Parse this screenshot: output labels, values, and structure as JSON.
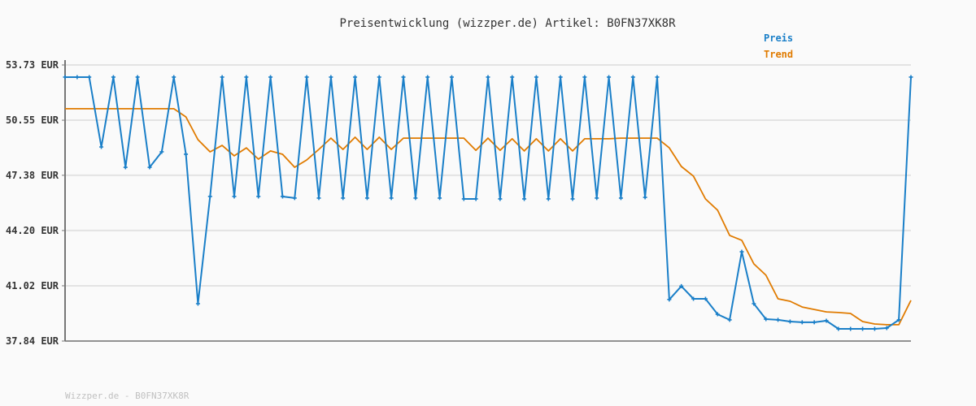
{
  "chart_data": {
    "type": "line",
    "title": "Preisentwicklung (wizzper.de) Artikel: B0FN37XK8R",
    "xlabel": "",
    "ylabel": "",
    "ylim": [
      37.84,
      53.73
    ],
    "yticks": [
      "37.84 EUR",
      "41.02 EUR",
      "44.20 EUR",
      "47.38 EUR",
      "50.55 EUR",
      "53.73 EUR"
    ],
    "ytick_values": [
      37.84,
      41.02,
      44.2,
      47.38,
      50.55,
      53.73
    ],
    "grid": true,
    "legend_position": "top-right",
    "series": [
      {
        "name": "Preis",
        "color": "#1a7fc8",
        "values": [
          53.03,
          53.03,
          53.03,
          49.01,
          53.03,
          47.84,
          53.03,
          47.84,
          48.73,
          53.03,
          48.59,
          39.99,
          46.16,
          53.03,
          46.16,
          53.03,
          46.16,
          53.03,
          46.16,
          46.07,
          53.03,
          46.07,
          53.03,
          46.07,
          53.03,
          46.07,
          53.03,
          46.07,
          53.03,
          46.07,
          53.03,
          46.07,
          53.03,
          46.02,
          46.02,
          53.03,
          46.02,
          53.03,
          46.02,
          53.03,
          46.02,
          53.03,
          46.02,
          53.03,
          46.07,
          53.03,
          46.07,
          53.03,
          46.11,
          53.03,
          40.23,
          41.0,
          40.27,
          40.27,
          39.38,
          39.06,
          42.98,
          39.99,
          39.1,
          39.06,
          38.96,
          38.92,
          38.92,
          39.01,
          38.54,
          38.54,
          38.54,
          38.54,
          38.59,
          39.06,
          53.03
        ]
      },
      {
        "name": "Trend",
        "color": "#e07b00",
        "values": [
          51.21,
          51.21,
          51.21,
          51.21,
          51.21,
          51.21,
          51.21,
          51.21,
          51.21,
          51.21,
          50.74,
          49.43,
          48.73,
          49.1,
          48.5,
          48.96,
          48.31,
          48.78,
          48.59,
          47.84,
          48.26,
          48.87,
          49.52,
          48.87,
          49.57,
          48.87,
          49.57,
          48.87,
          49.52,
          49.52,
          49.52,
          49.52,
          49.52,
          49.52,
          48.82,
          49.52,
          48.82,
          49.48,
          48.78,
          49.48,
          48.78,
          49.48,
          48.78,
          49.48,
          49.48,
          49.48,
          49.52,
          49.52,
          49.52,
          49.52,
          48.96,
          47.89,
          47.33,
          46.02,
          45.37,
          43.92,
          43.64,
          42.28,
          41.63,
          40.27,
          40.13,
          39.8,
          39.66,
          39.52,
          39.48,
          39.43,
          38.96,
          38.82,
          38.78,
          38.78,
          40.18
        ]
      }
    ]
  },
  "footer": "Wizzper.de - B0FN37XK8R"
}
